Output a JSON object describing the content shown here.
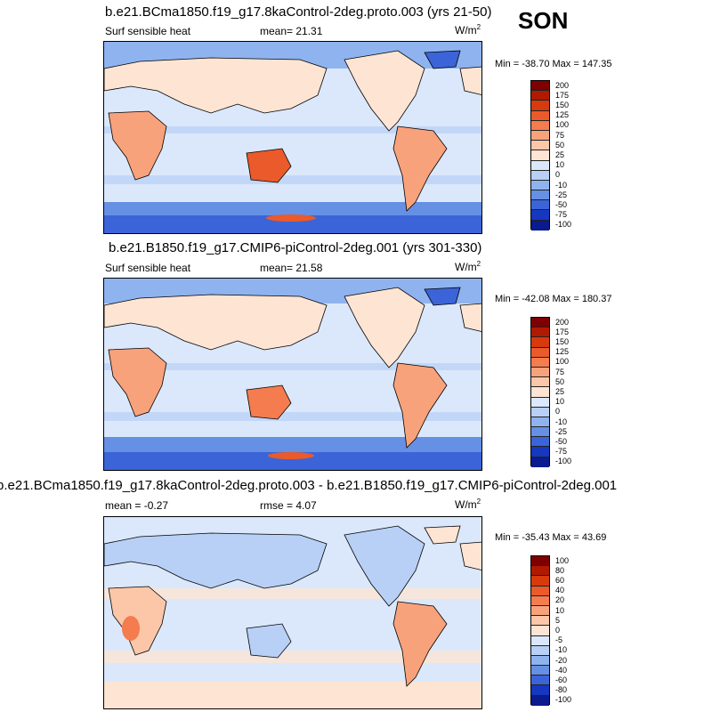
{
  "season": "SON",
  "panels": [
    {
      "title": "b.e21.BCma1850.f19_g17.8kaControl-2deg.proto.003 (yrs 21-50)",
      "left_label": "Surf sensible heat",
      "mid_label": "mean=  21.31",
      "units": "W/m",
      "units_sup": "2",
      "minmax": "Min = -38.70 Max = 147.35",
      "colorbar_ticks": [
        "200",
        "175",
        "150",
        "125",
        "100",
        "75",
        "50",
        "25",
        "10",
        "0",
        "-10",
        "-25",
        "-50",
        "-75",
        "-100"
      ]
    },
    {
      "title": "b.e21.B1850.f19_g17.CMIP6-piControl-2deg.001 (yrs 301-330)",
      "left_label": "Surf sensible heat",
      "mid_label": "mean=  21.58",
      "units": "W/m",
      "units_sup": "2",
      "minmax": "Min = -42.08 Max = 180.37",
      "colorbar_ticks": [
        "200",
        "175",
        "150",
        "125",
        "100",
        "75",
        "50",
        "25",
        "10",
        "0",
        "-10",
        "-25",
        "-50",
        "-75",
        "-100"
      ]
    },
    {
      "title": "b.e21.BCma1850.f19_g17.8kaControl-2deg.proto.003 - b.e21.B1850.f19_g17.CMIP6-piControl-2deg.001",
      "left_label": "mean =  -0.27",
      "mid_label": "rmse =   4.07",
      "units": "W/m",
      "units_sup": "2",
      "minmax": "Min = -35.43 Max =  43.69",
      "colorbar_ticks": [
        "100",
        "80",
        "60",
        "40",
        "20",
        "10",
        "5",
        "0",
        "-5",
        "-10",
        "-20",
        "-40",
        "-60",
        "-80",
        "-100"
      ]
    }
  ],
  "colors": {
    "palette": [
      "#7f0000",
      "#b01a00",
      "#d63a0d",
      "#ea5a2a",
      "#f47c4e",
      "#f8a27c",
      "#fbc7a8",
      "#fde4d3",
      "#dbe8fb",
      "#b8d0f6",
      "#8fb3ef",
      "#6690e4",
      "#3b64d8",
      "#1637c0",
      "#0a1a8f"
    ],
    "ocean": "#dbe8fb",
    "land": "#fde4d3",
    "hot_land": "#f8a27c",
    "very_hot": "#ea5a2a",
    "cold": "#8fb3ef",
    "very_cold": "#3b64d8"
  }
}
